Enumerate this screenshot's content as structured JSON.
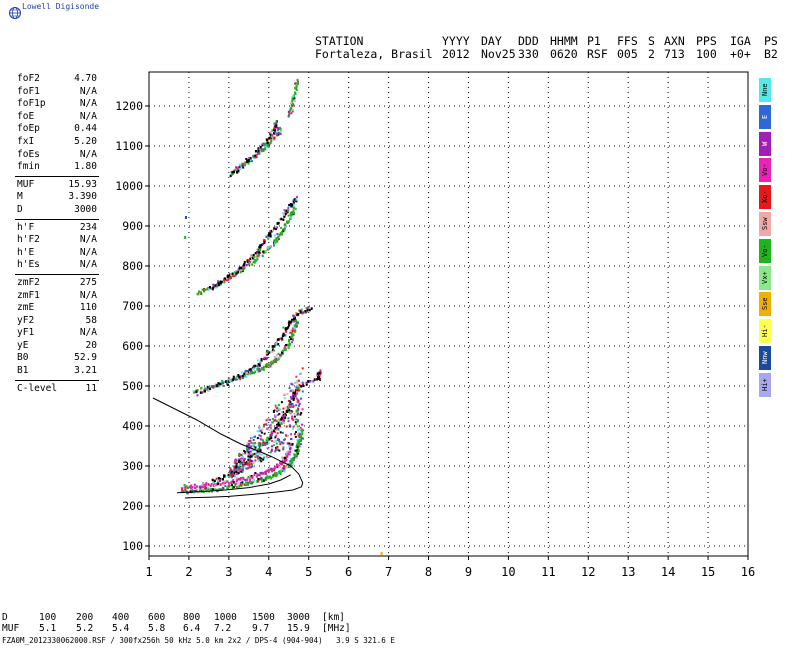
{
  "brand": {
    "name": "Lowell Digisonde",
    "color": "#1b3fa8",
    "icon": "globe-icon"
  },
  "header": {
    "labels": [
      "STATION",
      "YYYY",
      "DAY",
      "DDD",
      "HHMM",
      "P1",
      "FFS",
      "S",
      "AXN",
      "PPS",
      "IGA",
      "PS"
    ],
    "values": [
      "Fortaleza, Brasil",
      "2012",
      "Nov25",
      "330",
      "0620",
      "RSF",
      "005",
      "2",
      "713",
      "100",
      "+0+",
      "B2"
    ]
  },
  "parameters": {
    "group1": [
      {
        "name": "foF2",
        "value": "4.70"
      },
      {
        "name": "foF1",
        "value": "N/A"
      },
      {
        "name": "foF1p",
        "value": "N/A"
      },
      {
        "name": "foE",
        "value": "N/A"
      },
      {
        "name": "foEp",
        "value": "0.44"
      },
      {
        "name": "fxI",
        "value": "5.20"
      },
      {
        "name": "foEs",
        "value": "N/A"
      },
      {
        "name": "fmin",
        "value": "1.80"
      }
    ],
    "group2": [
      {
        "name": "MUF",
        "value": "15.93"
      },
      {
        "name": "M",
        "value": "3.390"
      },
      {
        "name": "D",
        "value": "3000"
      }
    ],
    "group3": [
      {
        "name": "h'F",
        "value": "234"
      },
      {
        "name": "h'F2",
        "value": "N/A"
      },
      {
        "name": "h'E",
        "value": "N/A"
      },
      {
        "name": "h'Es",
        "value": "N/A"
      }
    ],
    "group4": [
      {
        "name": "zmF2",
        "value": "275"
      },
      {
        "name": "zmF1",
        "value": "N/A"
      },
      {
        "name": "zmE",
        "value": "110"
      },
      {
        "name": "yF2",
        "value": "58"
      },
      {
        "name": "yF1",
        "value": "N/A"
      },
      {
        "name": "yE",
        "value": "20"
      },
      {
        "name": "B0",
        "value": "52.9"
      },
      {
        "name": "B1",
        "value": "3.21"
      }
    ],
    "group5": [
      {
        "name": "C-level",
        "value": "11"
      }
    ]
  },
  "legend": [
    {
      "label": "Nne",
      "color": "#55e8e8"
    },
    {
      "label": "E",
      "color": "#2f66d8"
    },
    {
      "label": "W",
      "color": "#a21fb7"
    },
    {
      "label": "Vo-",
      "color": "#e824b8"
    },
    {
      "label": "Xo-",
      "color": "#e81818"
    },
    {
      "label": "Ssw",
      "color": "#f0a8a8"
    },
    {
      "label": "Vo-",
      "color": "#1fb41f"
    },
    {
      "label": "Vx+",
      "color": "#8be88b"
    },
    {
      "label": "Sse",
      "color": "#f0b000"
    },
    {
      "label": "Hi-",
      "color": "#ffff50"
    },
    {
      "label": "Nnw",
      "color": "#1a4a9a"
    },
    {
      "label": "Hi+",
      "color": "#a8a8f0"
    }
  ],
  "chart_data": {
    "type": "scatter",
    "xlim": [
      1,
      16
    ],
    "ylim": [
      75,
      1285
    ],
    "x_ticks": [
      1,
      2,
      3,
      4,
      5,
      6,
      7,
      8,
      9,
      10,
      11,
      12,
      13,
      14,
      15,
      16
    ],
    "y_ticks": [
      100,
      200,
      300,
      400,
      500,
      600,
      700,
      800,
      900,
      1000,
      1100,
      1200
    ],
    "grid": true,
    "legend_position": "right",
    "traces": [
      {
        "name": "O1",
        "color": "#1fb41f",
        "points": [
          [
            1.8,
            238
          ],
          [
            2.2,
            240
          ],
          [
            2.6,
            244
          ],
          [
            3.0,
            250
          ],
          [
            3.4,
            258
          ],
          [
            3.8,
            268
          ],
          [
            4.1,
            278
          ],
          [
            4.3,
            290
          ],
          [
            4.5,
            305
          ],
          [
            4.6,
            320
          ],
          [
            4.7,
            345
          ],
          [
            4.75,
            370
          ],
          [
            4.8,
            395
          ]
        ]
      },
      {
        "name": "O1b",
        "color": "#e824b8",
        "points": [
          [
            1.8,
            250
          ],
          [
            2.2,
            252
          ],
          [
            2.6,
            256
          ],
          [
            3.0,
            262
          ],
          [
            3.4,
            270
          ],
          [
            3.8,
            282
          ],
          [
            4.1,
            295
          ],
          [
            4.3,
            310
          ],
          [
            4.45,
            330
          ],
          [
            4.55,
            360
          ]
        ]
      },
      {
        "name": "X1",
        "color": "#000000",
        "points": [
          [
            2.6,
            265
          ],
          [
            3.0,
            280
          ],
          [
            3.3,
            300
          ],
          [
            3.6,
            330
          ],
          [
            3.9,
            360
          ],
          [
            4.1,
            390
          ],
          [
            4.3,
            420
          ],
          [
            4.5,
            450
          ],
          [
            4.6,
            480
          ],
          [
            4.7,
            500
          ],
          [
            5.2,
            520
          ],
          [
            5.25,
            540
          ]
        ]
      },
      {
        "name": "O2",
        "color": "#1fb41f",
        "points": [
          [
            2.1,
            490
          ],
          [
            2.6,
            500
          ],
          [
            3.0,
            515
          ],
          [
            3.4,
            530
          ],
          [
            3.8,
            545
          ],
          [
            4.1,
            565
          ],
          [
            4.3,
            585
          ],
          [
            4.5,
            610
          ],
          [
            4.6,
            640
          ],
          [
            4.7,
            670
          ]
        ]
      },
      {
        "name": "X2",
        "color": "#000000",
        "points": [
          [
            2.2,
            485
          ],
          [
            2.8,
            510
          ],
          [
            3.3,
            530
          ],
          [
            3.7,
            555
          ],
          [
            4.0,
            590
          ],
          [
            4.3,
            625
          ],
          [
            4.5,
            660
          ],
          [
            4.7,
            685
          ],
          [
            5.05,
            695
          ]
        ]
      },
      {
        "name": "O3",
        "color": "#1fb41f",
        "points": [
          [
            2.2,
            735
          ],
          [
            2.6,
            750
          ],
          [
            3.0,
            775
          ],
          [
            3.4,
            800
          ],
          [
            3.8,
            830
          ],
          [
            4.1,
            860
          ],
          [
            4.3,
            890
          ],
          [
            4.5,
            920
          ],
          [
            4.65,
            955
          ]
        ]
      },
      {
        "name": "X3",
        "color": "#000000",
        "points": [
          [
            2.5,
            745
          ],
          [
            2.9,
            770
          ],
          [
            3.3,
            800
          ],
          [
            3.7,
            840
          ],
          [
            4.0,
            880
          ],
          [
            4.3,
            920
          ],
          [
            4.5,
            950
          ],
          [
            4.7,
            975
          ]
        ]
      },
      {
        "name": "O4",
        "color": "#1fb41f",
        "points": [
          [
            3.0,
            1030
          ],
          [
            3.4,
            1060
          ],
          [
            3.8,
            1090
          ],
          [
            4.1,
            1120
          ],
          [
            4.3,
            1150
          ]
        ]
      },
      {
        "name": "X4",
        "color": "#000000",
        "points": [
          [
            3.1,
            1035
          ],
          [
            3.5,
            1070
          ],
          [
            3.9,
            1110
          ],
          [
            4.1,
            1140
          ],
          [
            4.2,
            1165
          ]
        ]
      },
      {
        "name": "O5",
        "color": "#1fb41f",
        "points": [
          [
            4.5,
            1180
          ],
          [
            4.6,
            1220
          ],
          [
            4.7,
            1270
          ]
        ]
      }
    ],
    "isolated_points": [
      [
        1.9,
        925,
        "#1a4a9a"
      ],
      [
        1.88,
        875,
        "#1fb41f"
      ],
      [
        6.8,
        85,
        "#f0b000"
      ]
    ],
    "profile_curves": [
      {
        "name": "profile-outer",
        "color": "#000000",
        "points": [
          [
            1.1,
            470
          ],
          [
            1.6,
            445
          ],
          [
            2.2,
            415
          ],
          [
            2.8,
            380
          ],
          [
            3.3,
            355
          ],
          [
            3.8,
            335
          ],
          [
            4.1,
            322
          ],
          [
            4.3,
            312
          ],
          [
            4.55,
            300
          ],
          [
            4.75,
            280
          ],
          [
            4.85,
            258
          ],
          [
            4.82,
            248
          ],
          [
            4.6,
            240
          ],
          [
            4.2,
            235
          ],
          [
            3.6,
            229
          ],
          [
            3.0,
            224
          ],
          [
            2.5,
            222
          ],
          [
            2.1,
            221
          ],
          [
            1.9,
            220
          ]
        ]
      },
      {
        "name": "profile-inner",
        "color": "#000000",
        "points": [
          [
            1.7,
            233
          ],
          [
            2.3,
            236
          ],
          [
            2.9,
            240
          ],
          [
            3.5,
            246
          ],
          [
            4.0,
            255
          ],
          [
            4.3,
            265
          ],
          [
            4.55,
            278
          ]
        ]
      }
    ]
  },
  "md_table": {
    "d_label": "D",
    "d_values": [
      "100",
      "200",
      "400",
      "600",
      "800",
      "1000",
      "1500",
      "3000"
    ],
    "d_unit": "[km]",
    "muf_label": "MUF",
    "muf_values": [
      "5.1",
      "5.2",
      "5.4",
      "5.8",
      "6.4",
      "7.2",
      "9.7",
      "15.9"
    ],
    "muf_unit": "[MHz]"
  },
  "footer": "FZA0M_2012330062000.RSF / 300fx256h 50 kHz 5.0 km 2x2 / DPS-4 (904-904)   3.9 S 321.6 E"
}
